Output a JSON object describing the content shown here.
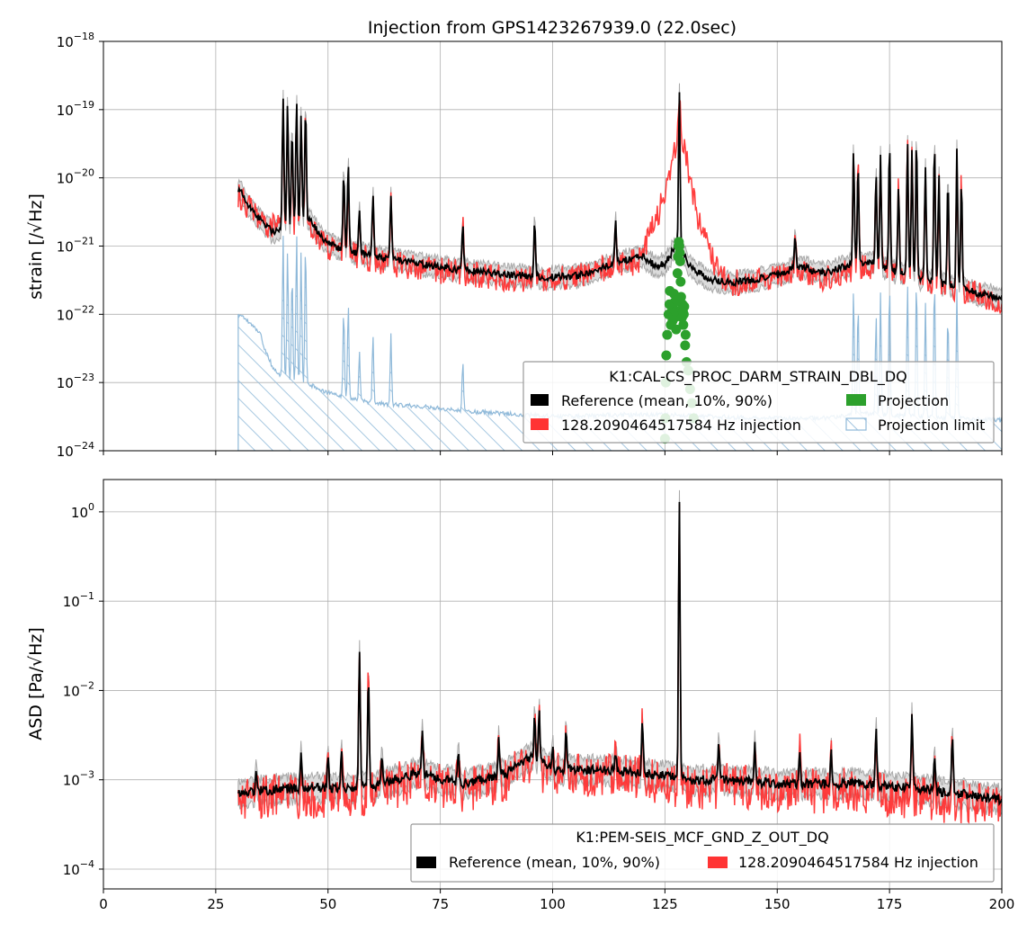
{
  "title": "Injection from GPS1423267939.0 (22.0sec)",
  "colors": {
    "reference": "#000000",
    "band": "#bbbbbb",
    "injection": "#ff3333",
    "projection": "#2ca02c",
    "limit": "#8fb9d9",
    "grid": "#b0b0b0"
  },
  "chart_data": [
    {
      "type": "line",
      "panel": "top",
      "title": "Injection from GPS1423267939.0 (22.0sec)",
      "ylabel": "strain [/√Hz]",
      "xlim": [
        0,
        200
      ],
      "ylim": [
        1e-24,
        1e-18
      ],
      "yscale": "log",
      "grid": true,
      "xticks": [
        0,
        25,
        50,
        75,
        100,
        125,
        150,
        175,
        200
      ],
      "yticks": [
        {
          "value": 1e-24,
          "mant": "10",
          "exp": "−24"
        },
        {
          "value": 1e-23,
          "mant": "10",
          "exp": "−23"
        },
        {
          "value": 1e-22,
          "mant": "10",
          "exp": "−22"
        },
        {
          "value": 1e-21,
          "mant": "10",
          "exp": "−21"
        },
        {
          "value": 1e-20,
          "mant": "10",
          "exp": "−20"
        },
        {
          "value": 1e-19,
          "mant": "10",
          "exp": "−19"
        },
        {
          "value": 1e-18,
          "mant": "10",
          "exp": "−18"
        }
      ],
      "legend": {
        "title": "K1:CAL-CS_PROC_DARM_STRAIN_DBL_DQ",
        "placement": "lower-right",
        "entries": [
          {
            "label": "Reference (mean, 10%, 90%)",
            "kind": "reference"
          },
          {
            "label": "128.2090464517584 Hz injection",
            "kind": "injection"
          },
          {
            "label": "Projection",
            "kind": "projection"
          },
          {
            "label": "Projection limit",
            "kind": "limit"
          }
        ]
      },
      "freq_range": [
        30,
        200
      ],
      "reference_baseline": [
        [
          30,
          7e-21
        ],
        [
          33,
          3.5e-21
        ],
        [
          36,
          2e-21
        ],
        [
          38,
          1.6e-21
        ],
        [
          40,
          2e-21
        ],
        [
          46,
          2.5e-21
        ],
        [
          48,
          1.5e-21
        ],
        [
          50,
          1.1e-21
        ],
        [
          55,
          8.5e-22
        ],
        [
          60,
          7e-22
        ],
        [
          70,
          5.5e-22
        ],
        [
          80,
          4.5e-22
        ],
        [
          90,
          3.8e-22
        ],
        [
          100,
          3.5e-22
        ],
        [
          105,
          3.6e-22
        ],
        [
          110,
          4.5e-22
        ],
        [
          115,
          6e-22
        ],
        [
          120,
          7e-22
        ],
        [
          123,
          5e-22
        ],
        [
          125,
          5.5e-22
        ],
        [
          127,
          9e-22
        ],
        [
          129,
          8e-22
        ],
        [
          131,
          4.5e-22
        ],
        [
          135,
          3.3e-22
        ],
        [
          140,
          2.9e-22
        ],
        [
          145,
          3.2e-22
        ],
        [
          150,
          3.8e-22
        ],
        [
          155,
          5e-22
        ],
        [
          160,
          4e-22
        ],
        [
          165,
          5e-22
        ],
        [
          170,
          6e-22
        ],
        [
          180,
          3.5e-22
        ],
        [
          185,
          3e-22
        ],
        [
          190,
          2.5e-22
        ],
        [
          195,
          2e-22
        ],
        [
          200,
          1.8e-22
        ]
      ],
      "injection_baseline": [
        [
          30,
          6e-21
        ],
        [
          33,
          3.5e-21
        ],
        [
          36,
          2e-21
        ],
        [
          40,
          2e-21
        ],
        [
          46,
          2e-21
        ],
        [
          50,
          1e-21
        ],
        [
          55,
          8e-22
        ],
        [
          60,
          6.5e-22
        ],
        [
          70,
          5e-22
        ],
        [
          80,
          4.2e-22
        ],
        [
          90,
          3.5e-22
        ],
        [
          100,
          3.3e-22
        ],
        [
          110,
          4.5e-22
        ],
        [
          115,
          6e-22
        ],
        [
          119,
          6e-22
        ],
        [
          121,
          1.2e-21
        ],
        [
          123,
          2.5e-21
        ],
        [
          125,
          6e-21
        ],
        [
          127,
          2.5e-20
        ],
        [
          128.2,
          6e-20
        ],
        [
          129.5,
          2.5e-20
        ],
        [
          131,
          6e-21
        ],
        [
          133,
          2e-21
        ],
        [
          135,
          8e-22
        ],
        [
          138,
          3.5e-22
        ],
        [
          140,
          3e-22
        ],
        [
          150,
          3.5e-22
        ],
        [
          155,
          4.5e-22
        ],
        [
          160,
          3.5e-22
        ],
        [
          170,
          5.5e-22
        ],
        [
          180,
          3.5e-22
        ],
        [
          190,
          2.5e-22
        ],
        [
          195,
          2e-22
        ],
        [
          200,
          1.7e-22
        ]
      ],
      "peaks": [
        [
          40,
          1.6e-19
        ],
        [
          41,
          1.2e-19
        ],
        [
          42,
          5e-20
        ],
        [
          43,
          1.4e-19
        ],
        [
          44,
          8e-20
        ],
        [
          45,
          1.1e-19
        ],
        [
          53.5,
          1.2e-20
        ],
        [
          54.5,
          1.5e-20
        ],
        [
          57,
          3e-21
        ],
        [
          60,
          6e-21
        ],
        [
          64,
          5e-21
        ],
        [
          80,
          2e-21
        ],
        [
          96,
          2.5e-21
        ],
        [
          114,
          2.5e-21
        ],
        [
          128.2,
          2e-19
        ],
        [
          154,
          1.5e-21
        ],
        [
          167,
          2.5e-20
        ],
        [
          168,
          1.5e-20
        ],
        [
          172,
          1e-20
        ],
        [
          173,
          2e-20
        ],
        [
          175,
          3e-20
        ],
        [
          177,
          8e-21
        ],
        [
          179,
          3e-20
        ],
        [
          180,
          2.5e-20
        ],
        [
          181,
          3.5e-20
        ],
        [
          183,
          1.5e-20
        ],
        [
          185,
          3.5e-20
        ],
        [
          186,
          1e-20
        ],
        [
          188,
          1e-20
        ],
        [
          190,
          2.5e-20
        ],
        [
          191,
          1e-20
        ]
      ],
      "projection_points": [
        [
          125.0,
          1.5e-24
        ],
        [
          125.1,
          3e-24
        ],
        [
          125.2,
          1e-23
        ],
        [
          125.3,
          2.5e-23
        ],
        [
          125.5,
          5e-23
        ],
        [
          125.8,
          1e-22
        ],
        [
          126.0,
          1.4e-22
        ],
        [
          126.1,
          2.2e-22
        ],
        [
          126.3,
          7e-23
        ],
        [
          126.5,
          1.3e-22
        ],
        [
          126.7,
          8e-23
        ],
        [
          126.8,
          1.2e-22
        ],
        [
          127.0,
          2e-22
        ],
        [
          127.1,
          1.5e-22
        ],
        [
          127.2,
          9e-23
        ],
        [
          127.4,
          1.1e-22
        ],
        [
          127.5,
          6e-23
        ],
        [
          127.6,
          1.6e-22
        ],
        [
          127.8,
          4e-22
        ],
        [
          127.9,
          7e-22
        ],
        [
          128.0,
          1e-21
        ],
        [
          128.1,
          1.15e-21
        ],
        [
          128.2,
          1e-21
        ],
        [
          128.3,
          8e-22
        ],
        [
          128.4,
          6e-22
        ],
        [
          128.5,
          3e-22
        ],
        [
          128.6,
          1.8e-22
        ],
        [
          128.7,
          1.2e-22
        ],
        [
          128.8,
          9e-23
        ],
        [
          128.9,
          1.4e-22
        ],
        [
          129.0,
          1.1e-22
        ],
        [
          129.1,
          7e-23
        ],
        [
          129.2,
          1e-22
        ],
        [
          129.3,
          1.3e-22
        ],
        [
          129.5,
          3.5e-23
        ],
        [
          129.6,
          5e-23
        ],
        [
          129.8,
          2e-23
        ],
        [
          130.2,
          1.5e-23
        ],
        [
          130.6,
          8e-24
        ],
        [
          131.0,
          5e-24
        ],
        [
          131.4,
          3e-24
        ]
      ],
      "limit_baseline": [
        [
          30,
          1e-22
        ],
        [
          33,
          7e-23
        ],
        [
          35,
          5e-23
        ],
        [
          36,
          3e-23
        ],
        [
          38,
          1.5e-23
        ],
        [
          40,
          1.2e-23
        ],
        [
          45,
          1e-23
        ],
        [
          50,
          7e-24
        ],
        [
          60,
          5e-24
        ],
        [
          70,
          4.5e-24
        ],
        [
          80,
          3.8e-24
        ],
        [
          90,
          3.5e-24
        ],
        [
          100,
          3.2e-24
        ],
        [
          110,
          3.3e-24
        ],
        [
          120,
          3.4e-24
        ],
        [
          130,
          3.3e-24
        ],
        [
          140,
          3.1e-24
        ],
        [
          150,
          3e-24
        ],
        [
          160,
          3e-24
        ],
        [
          170,
          3.5e-24
        ],
        [
          180,
          3.2e-24
        ],
        [
          190,
          3e-24
        ],
        [
          200,
          2.8e-24
        ]
      ],
      "limit_peaks": [
        [
          40,
          1.5e-21
        ],
        [
          41,
          1e-21
        ],
        [
          42,
          4e-22
        ],
        [
          43,
          1.5e-21
        ],
        [
          44,
          8e-22
        ],
        [
          45,
          1.2e-21
        ],
        [
          53.5,
          1.2e-22
        ],
        [
          54.5,
          1.5e-22
        ],
        [
          57,
          3e-23
        ],
        [
          60,
          5e-23
        ],
        [
          64,
          5e-23
        ],
        [
          80,
          2e-23
        ],
        [
          167,
          2.5e-22
        ],
        [
          168,
          1.5e-22
        ],
        [
          172,
          1e-22
        ],
        [
          173,
          2e-22
        ],
        [
          175,
          3e-22
        ],
        [
          179,
          3e-22
        ],
        [
          181,
          3.5e-22
        ],
        [
          183,
          1.5e-22
        ],
        [
          185,
          3.5e-22
        ],
        [
          188,
          1e-22
        ],
        [
          190,
          2.5e-22
        ]
      ]
    },
    {
      "type": "line",
      "panel": "bottom",
      "ylabel": "ASD [Pa/√Hz]",
      "xlim": [
        0,
        200
      ],
      "ylim": [
        6e-05,
        2.3
      ],
      "yscale": "log",
      "grid": true,
      "xticks": [
        0,
        25,
        50,
        75,
        100,
        125,
        150,
        175,
        200
      ],
      "yticks": [
        {
          "value": 0.0001,
          "mant": "10",
          "exp": "−4"
        },
        {
          "value": 0.001,
          "mant": "10",
          "exp": "−3"
        },
        {
          "value": 0.01,
          "mant": "10",
          "exp": "−2"
        },
        {
          "value": 0.1,
          "mant": "10",
          "exp": "−1"
        },
        {
          "value": 1,
          "mant": "10",
          "exp": "0"
        }
      ],
      "legend": {
        "title": "K1:PEM-SEIS_MCF_GND_Z_OUT_DQ",
        "placement": "lower-right",
        "entries": [
          {
            "label": "Reference (mean, 10%, 90%)",
            "kind": "reference"
          },
          {
            "label": "128.2090464517584 Hz injection",
            "kind": "injection"
          }
        ]
      },
      "freq_range": [
        30,
        200
      ],
      "reference_baseline": [
        [
          30,
          0.0007
        ],
        [
          40,
          0.0008
        ],
        [
          50,
          0.0008
        ],
        [
          60,
          0.00085
        ],
        [
          70,
          0.0012
        ],
        [
          80,
          0.0009
        ],
        [
          90,
          0.0012
        ],
        [
          95,
          0.0018
        ],
        [
          100,
          0.0013
        ],
        [
          110,
          0.0013
        ],
        [
          120,
          0.0012
        ],
        [
          130,
          0.001
        ],
        [
          140,
          0.001
        ],
        [
          150,
          0.0009
        ],
        [
          160,
          0.0009
        ],
        [
          170,
          0.0009
        ],
        [
          180,
          0.0008
        ],
        [
          190,
          0.0007
        ],
        [
          200,
          0.0006
        ]
      ],
      "injection_baseline": [
        [
          30,
          0.0006
        ],
        [
          40,
          0.0007
        ],
        [
          50,
          0.0007
        ],
        [
          60,
          0.00075
        ],
        [
          70,
          0.0011
        ],
        [
          80,
          0.0008
        ],
        [
          90,
          0.0011
        ],
        [
          95,
          0.0016
        ],
        [
          100,
          0.0012
        ],
        [
          110,
          0.0012
        ],
        [
          120,
          0.0011
        ],
        [
          130,
          0.0009
        ],
        [
          140,
          0.0009
        ],
        [
          150,
          0.0008
        ],
        [
          160,
          0.0008
        ],
        [
          170,
          0.0008
        ],
        [
          180,
          0.0007
        ],
        [
          190,
          0.0006
        ],
        [
          200,
          0.00055
        ]
      ],
      "peaks": [
        [
          34,
          0.0013
        ],
        [
          44,
          0.0018
        ],
        [
          50,
          0.002
        ],
        [
          53,
          0.002
        ],
        [
          57,
          0.025
        ],
        [
          59,
          0.015
        ],
        [
          62,
          0.002
        ],
        [
          71,
          0.0035
        ],
        [
          79,
          0.002
        ],
        [
          88,
          0.003
        ],
        [
          96,
          0.005
        ],
        [
          97,
          0.006
        ],
        [
          100,
          0.0022
        ],
        [
          103,
          0.0035
        ],
        [
          114,
          0.002
        ],
        [
          120,
          0.0045
        ],
        [
          128.2,
          1.25
        ],
        [
          137,
          0.0025
        ],
        [
          145,
          0.0025
        ],
        [
          155,
          0.002
        ],
        [
          162,
          0.002
        ],
        [
          172,
          0.004
        ],
        [
          180,
          0.006
        ],
        [
          185,
          0.0018
        ],
        [
          189,
          0.003
        ]
      ]
    }
  ]
}
